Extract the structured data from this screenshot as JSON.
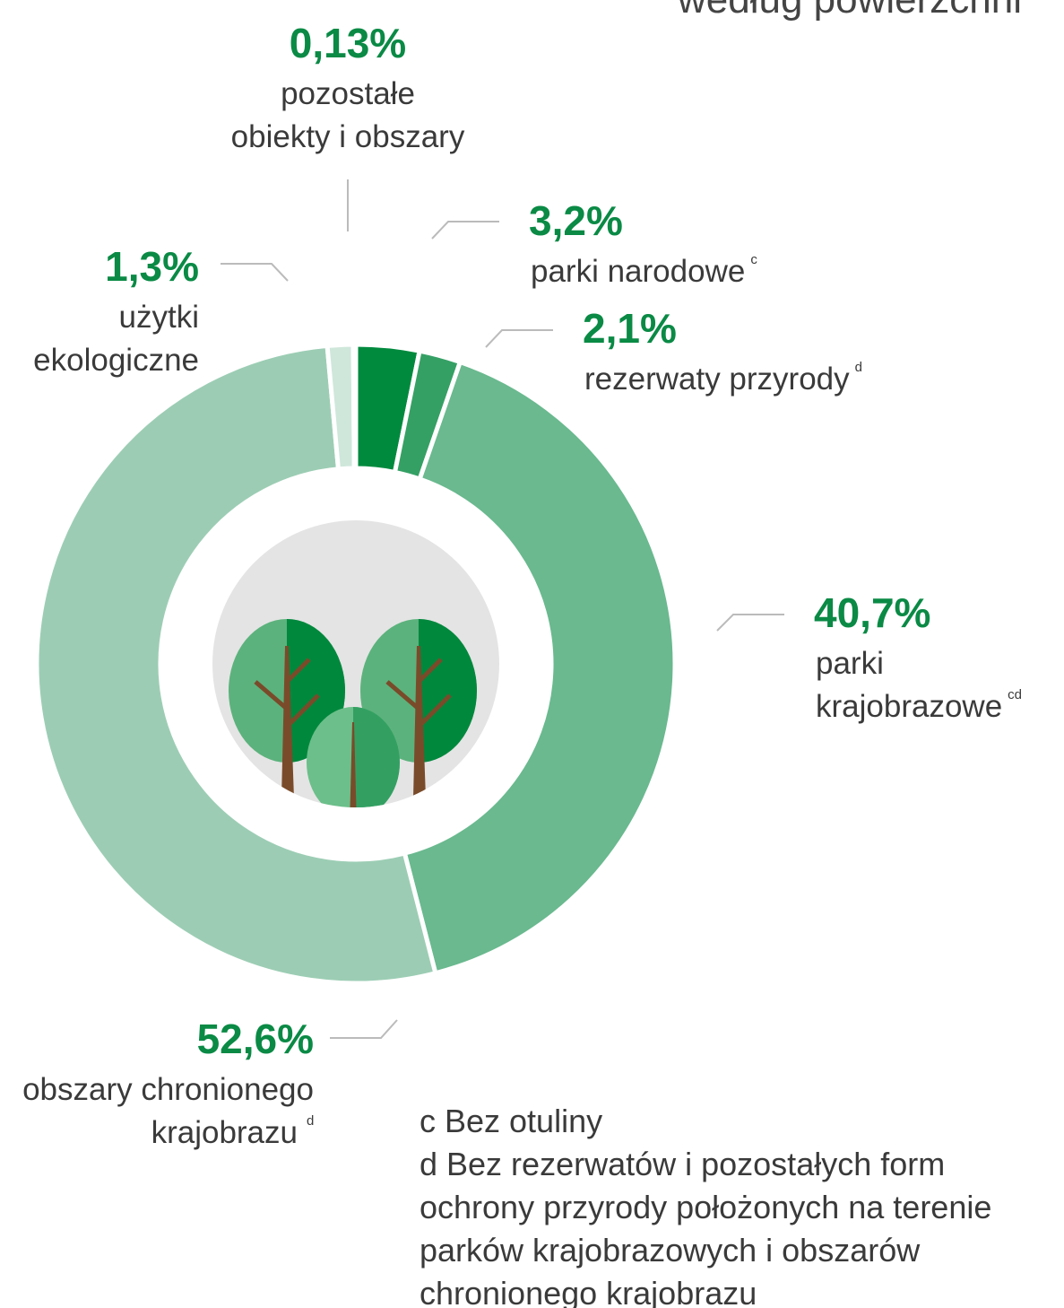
{
  "title": "według powierzchni",
  "chart_data": {
    "type": "donut",
    "categories": [
      [
        "parki narodowe"
      ],
      [
        "rezerwaty przyrody"
      ],
      [
        "parki",
        "krajobrazowe"
      ],
      [
        "obszary chronionego",
        "krajobrazu"
      ],
      [
        "użytki",
        "ekologiczne"
      ],
      [
        "pozostałe",
        "obiekty i obszary"
      ]
    ],
    "footnote_marks": [
      "c",
      "d",
      "cd",
      "d",
      null,
      null
    ],
    "values": [
      3.2,
      2.1,
      40.7,
      52.6,
      1.3,
      0.13
    ],
    "value_labels": [
      "3,2%",
      "2,1%",
      "40,7%",
      "52,6%",
      "1,3%",
      "0,13%"
    ],
    "colors": [
      "#008a3e",
      "#35a064",
      "#6ab98f",
      "#9ccdb4",
      "#cfe7db",
      "#e8f4ee"
    ]
  },
  "notes": [
    "c Bez otuliny",
    "d Bez rezerwatów i pozostałych form",
    "ochrony przyrody położonych na terenie",
    "parków krajobrazowych i obszarów",
    "chronionego krajobrazu"
  ]
}
